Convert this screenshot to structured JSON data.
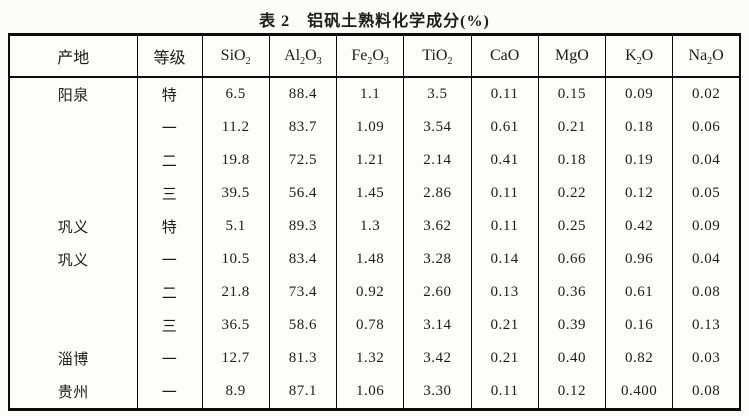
{
  "title": "表 2　铝矾土熟料化学成分(%)",
  "table": {
    "columns": [
      {
        "key": "origin",
        "label": "产地"
      },
      {
        "key": "grade",
        "label": "等级"
      },
      {
        "key": "sio2",
        "label": "SiO~2~"
      },
      {
        "key": "al2o3",
        "label": "Al~2~O~3~"
      },
      {
        "key": "fe2o3",
        "label": "Fe~2~O~3~"
      },
      {
        "key": "tio2",
        "label": "TiO~2~"
      },
      {
        "key": "cao",
        "label": "CaO"
      },
      {
        "key": "mgo",
        "label": "MgO"
      },
      {
        "key": "k2o",
        "label": "K~2~O"
      },
      {
        "key": "na2o",
        "label": "Na~2~O"
      }
    ],
    "rows": [
      {
        "origin": "阳泉",
        "grade": "特",
        "values": [
          "6.5",
          "88.4",
          "1.1",
          "3.5",
          "0.11",
          "0.15",
          "0.09",
          "0.02"
        ]
      },
      {
        "origin": "",
        "grade": "一",
        "values": [
          "11.2",
          "83.7",
          "1.09",
          "3.54",
          "0.61",
          "0.21",
          "0.18",
          "0.06"
        ]
      },
      {
        "origin": "",
        "grade": "二",
        "values": [
          "19.8",
          "72.5",
          "1.21",
          "2.14",
          "0.41",
          "0.18",
          "0.19",
          "0.04"
        ]
      },
      {
        "origin": "",
        "grade": "三",
        "values": [
          "39.5",
          "56.4",
          "1.45",
          "2.86",
          "0.11",
          "0.22",
          "0.12",
          "0.05"
        ]
      },
      {
        "origin": "巩义",
        "grade": "特",
        "values": [
          "5.1",
          "89.3",
          "1.3",
          "3.62",
          "0.11",
          "0.25",
          "0.42",
          "0.09"
        ]
      },
      {
        "origin": "巩义",
        "grade": "一",
        "values": [
          "10.5",
          "83.4",
          "1.48",
          "3.28",
          "0.14",
          "0.66",
          "0.96",
          "0.04"
        ]
      },
      {
        "origin": "",
        "grade": "二",
        "values": [
          "21.8",
          "73.4",
          "0.92",
          "2.60",
          "0.13",
          "0.36",
          "0.61",
          "0.08"
        ]
      },
      {
        "origin": "",
        "grade": "三",
        "values": [
          "36.5",
          "58.6",
          "0.78",
          "3.14",
          "0.21",
          "0.39",
          "0.16",
          "0.13"
        ]
      },
      {
        "origin": "淄博",
        "grade": "一",
        "values": [
          "12.7",
          "81.3",
          "1.32",
          "3.42",
          "0.21",
          "0.40",
          "0.82",
          "0.03"
        ]
      },
      {
        "origin": "贵州",
        "grade": "一",
        "values": [
          "8.9",
          "87.1",
          "1.06",
          "3.30",
          "0.11",
          "0.12",
          "0.400",
          "0.08"
        ]
      }
    ]
  }
}
